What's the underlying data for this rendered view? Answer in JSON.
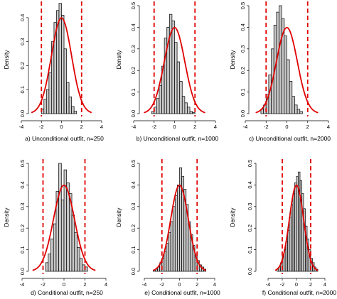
{
  "chart_data": [
    {
      "type": "bar",
      "title": "a) Unconditional outfit, n=250",
      "ylabel": "Density",
      "xlim": [
        -4,
        4
      ],
      "ylim": [
        0,
        0.45
      ],
      "xticks": [
        "-4",
        "-2",
        "0",
        "2",
        "4"
      ],
      "yticks": [
        "0.0",
        "0.1",
        "0.2",
        "0.3",
        "0.4"
      ],
      "bins": [
        -2.0,
        -1.75,
        -1.5,
        -1.25,
        -1.0,
        -0.75,
        -0.5,
        -0.25,
        0.0,
        0.25,
        0.5,
        0.75,
        1.0,
        1.25
      ],
      "bin_width": 0.25,
      "values": [
        0.02,
        0.06,
        0.1,
        0.17,
        0.3,
        0.38,
        0.43,
        0.46,
        0.41,
        0.27,
        0.13,
        0.07,
        0.03,
        0.01
      ],
      "curve": {
        "mean": 0,
        "sd": 1,
        "color": "#e00000"
      },
      "cutoffs": [
        -2,
        2
      ],
      "cutoff_color": "#e00000",
      "grid": false
    },
    {
      "type": "bar",
      "title": "b) Unconditional outfit, n=1000",
      "ylabel": "Density",
      "xlim": [
        -4,
        4
      ],
      "ylim": [
        0,
        0.5
      ],
      "xticks": [
        "-4",
        "-2",
        "0",
        "2",
        "4"
      ],
      "yticks": [
        "0.0",
        "0.1",
        "0.2",
        "0.3",
        "0.4",
        "0.5"
      ],
      "bins": [
        -2.25,
        -2.0,
        -1.75,
        -1.5,
        -1.25,
        -1.0,
        -0.75,
        -0.5,
        -0.25,
        0.0,
        0.25,
        0.5,
        0.75,
        1.0,
        1.25,
        1.5,
        1.75
      ],
      "bin_width": 0.25,
      "values": [
        0.01,
        0.03,
        0.07,
        0.13,
        0.22,
        0.35,
        0.4,
        0.46,
        0.43,
        0.33,
        0.24,
        0.15,
        0.08,
        0.05,
        0.03,
        0.01,
        0.005
      ],
      "curve": {
        "mean": 0,
        "sd": 1,
        "color": "#e00000"
      },
      "cutoffs": [
        -2,
        2
      ],
      "cutoff_color": "#e00000",
      "grid": false
    },
    {
      "type": "bar",
      "title": "c) Unconditional outfit, n=2000",
      "ylabel": "Density",
      "xlim": [
        -4,
        4
      ],
      "ylim": [
        0,
        0.5
      ],
      "xticks": [
        "-4",
        "-2",
        "0",
        "2",
        "4"
      ],
      "yticks": [
        "0.0",
        "0.1",
        "0.2",
        "0.3",
        "0.4",
        "0.5"
      ],
      "bins": [
        -2.5,
        -2.25,
        -2.0,
        -1.75,
        -1.5,
        -1.25,
        -1.0,
        -0.75,
        -0.5,
        -0.25,
        0.0,
        0.25,
        0.5,
        0.75,
        1.0,
        1.25
      ],
      "bin_width": 0.25,
      "values": [
        0.02,
        0.04,
        0.09,
        0.18,
        0.3,
        0.41,
        0.47,
        0.5,
        0.44,
        0.36,
        0.25,
        0.15,
        0.08,
        0.04,
        0.02,
        0.01
      ],
      "curve": {
        "mean": 0,
        "sd": 1,
        "color": "#e00000"
      },
      "cutoffs": [
        -2,
        2
      ],
      "cutoff_color": "#e00000",
      "grid": false
    },
    {
      "type": "bar",
      "title": "d) Conditional outfit, n=250",
      "ylabel": "Density",
      "xlim": [
        -4,
        4
      ],
      "ylim": [
        0,
        0.5
      ],
      "xticks": [
        "-4",
        "-2",
        "0",
        "2",
        "4"
      ],
      "yticks": [
        "0.0",
        "0.1",
        "0.2",
        "0.3",
        "0.4",
        "0.5"
      ],
      "bins": [
        -1.75,
        -1.5,
        -1.25,
        -1.0,
        -0.75,
        -0.5,
        -0.25,
        0.0,
        0.25,
        0.5,
        0.75,
        1.0,
        1.25,
        1.5,
        1.75,
        2.0
      ],
      "bin_width": 0.25,
      "values": [
        0.04,
        0.08,
        0.15,
        0.22,
        0.37,
        0.5,
        0.33,
        0.47,
        0.41,
        0.36,
        0.26,
        0.18,
        0.11,
        0.06,
        0.03,
        0.02
      ],
      "curve": {
        "mean": 0,
        "sd": 1,
        "color": "#e00000"
      },
      "cutoffs": [
        -2,
        2
      ],
      "cutoff_color": "#e00000",
      "grid": false
    },
    {
      "type": "bar",
      "title": "e) Conditional outfit, n=1000",
      "ylabel": "Density",
      "xlim": [
        -4,
        4
      ],
      "ylim": [
        0,
        0.5
      ],
      "xticks": [
        "-4",
        "-2",
        "0",
        "2",
        "4"
      ],
      "yticks": [
        "0.0",
        "0.1",
        "0.2",
        "0.3",
        "0.4",
        "0.5"
      ],
      "bins": [
        -3.0,
        -2.75,
        -2.5,
        -2.25,
        -2.0,
        -1.75,
        -1.5,
        -1.25,
        -1.0,
        -0.75,
        -0.5,
        -0.25,
        0.0,
        0.25,
        0.5,
        0.75,
        1.0,
        1.25,
        1.5,
        1.75,
        2.0,
        2.25,
        2.5,
        2.75
      ],
      "bin_width": 0.25,
      "values": [
        0.005,
        0.01,
        0.02,
        0.04,
        0.06,
        0.09,
        0.13,
        0.18,
        0.23,
        0.3,
        0.35,
        0.4,
        0.48,
        0.44,
        0.38,
        0.31,
        0.23,
        0.17,
        0.12,
        0.08,
        0.05,
        0.03,
        0.02,
        0.01
      ],
      "curve": {
        "mean": 0,
        "sd": 1,
        "color": "#e00000"
      },
      "cutoffs": [
        -2,
        2
      ],
      "cutoff_color": "#e00000",
      "grid": false
    },
    {
      "type": "bar",
      "title": "f) Conditional outfit, n=2000",
      "ylabel": "Density",
      "xlim": [
        -4,
        4
      ],
      "ylim": [
        0,
        0.5
      ],
      "xticks": [
        "-4",
        "-2",
        "0",
        "2",
        "4"
      ],
      "yticks": [
        "0.0",
        "0.1",
        "0.2",
        "0.3",
        "0.4",
        "0.5"
      ],
      "bins": [
        -2.75,
        -2.5,
        -2.25,
        -2.0,
        -1.75,
        -1.5,
        -1.25,
        -1.0,
        -0.75,
        -0.5,
        -0.25,
        0.0,
        0.25,
        0.5,
        0.75,
        1.0,
        1.25,
        1.5,
        1.75,
        2.0,
        2.25,
        2.5,
        2.75
      ],
      "bin_width": 0.25,
      "values": [
        0.01,
        0.02,
        0.04,
        0.07,
        0.1,
        0.14,
        0.19,
        0.25,
        0.31,
        0.36,
        0.41,
        0.44,
        0.46,
        0.42,
        0.36,
        0.29,
        0.21,
        0.15,
        0.1,
        0.06,
        0.04,
        0.02,
        0.01
      ],
      "curve": {
        "mean": 0,
        "sd": 1,
        "color": "#e00000"
      },
      "cutoffs": [
        -2,
        2
      ],
      "cutoff_color": "#e00000",
      "grid": false
    }
  ]
}
